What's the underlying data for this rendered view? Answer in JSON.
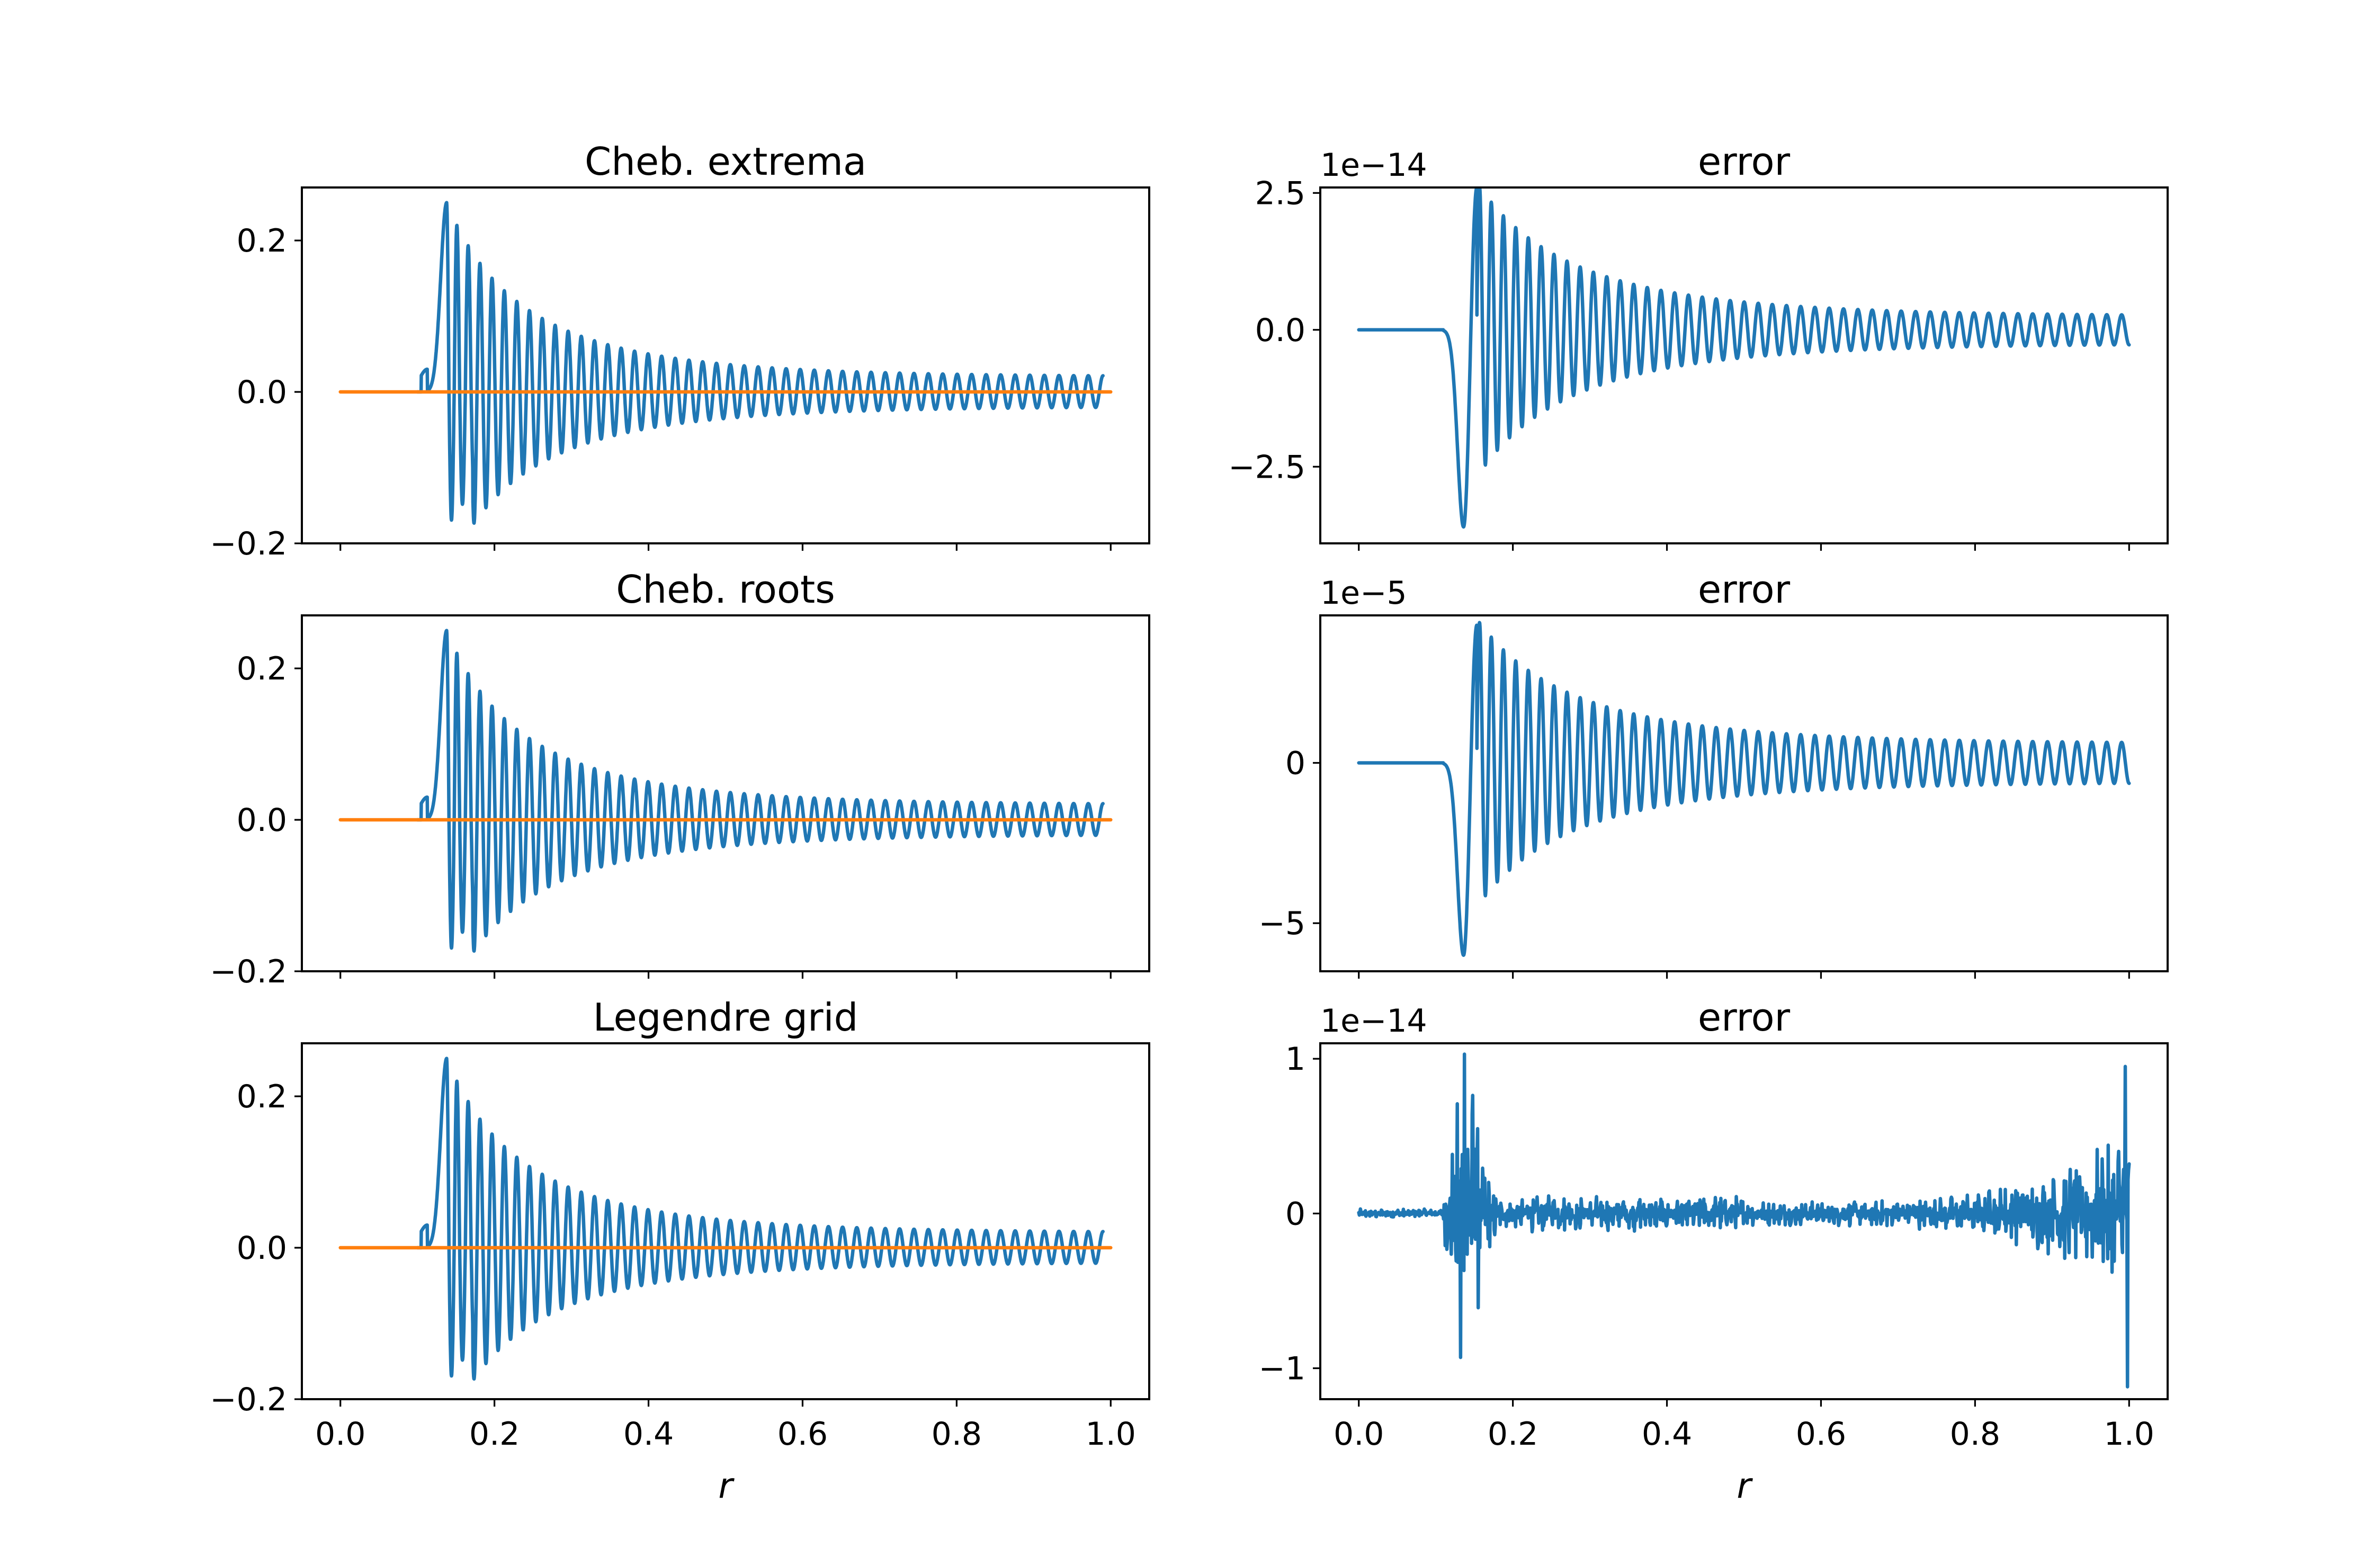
{
  "figure": {
    "xlabel": "r",
    "x_ticks": [
      0.0,
      0.2,
      0.4,
      0.6,
      0.8,
      1.0
    ],
    "x_tick_labels": [
      "0.0",
      "0.2",
      "0.4",
      "0.6",
      "0.8",
      "1.0"
    ],
    "colors": {
      "series_numeric": "#1f77b4",
      "series_exact": "#ff7f0e"
    }
  },
  "chart_data": [
    {
      "type": "line",
      "title": "Cheb. extrema",
      "xlabel": "",
      "xlim": [
        -0.05,
        1.05
      ],
      "ylim": [
        -0.2,
        0.27
      ],
      "y_ticks": [
        -0.2,
        0.0,
        0.2
      ],
      "y_tick_labels": [
        "−0.2",
        "0.0",
        "0.2"
      ],
      "offset_text": "",
      "show_x_tick_labels": false,
      "series": [
        {
          "color": "#1f77b4",
          "kind": "wave",
          "x_start": 0.1,
          "x_end": 0.99,
          "y_first_peak": 0.25,
          "y_first_trough": -0.18,
          "y_end_amplitude": 0.02,
          "cycles": 48
        },
        {
          "color": "#ff7f0e",
          "kind": "constant",
          "x_start": 0.0,
          "x_end": 1.0,
          "y": 0.0
        }
      ]
    },
    {
      "type": "line",
      "title": "error",
      "xlabel": "",
      "xlim": [
        -0.05,
        1.05
      ],
      "ylim": [
        -3.9,
        2.6
      ],
      "y_ticks": [
        -2.5,
        0.0,
        2.5
      ],
      "y_tick_labels": [
        "−2.5",
        "0.0",
        "2.5"
      ],
      "offset_text": "1e−14",
      "show_x_tick_labels": false,
      "series": [
        {
          "color": "#1f77b4",
          "kind": "error",
          "x_start": 0.0,
          "x_end": 1.0,
          "y_first_trough": -3.6,
          "y_first_peak": 2.6,
          "y_end_amplitude": 0.25,
          "cycles": 48
        }
      ]
    },
    {
      "type": "line",
      "title": "Cheb. roots",
      "xlabel": "",
      "xlim": [
        -0.05,
        1.05
      ],
      "ylim": [
        -0.2,
        0.27
      ],
      "y_ticks": [
        -0.2,
        0.0,
        0.2
      ],
      "y_tick_labels": [
        "−0.2",
        "0.0",
        "0.2"
      ],
      "offset_text": "",
      "show_x_tick_labels": false,
      "series": [
        {
          "color": "#1f77b4",
          "kind": "wave",
          "x_start": 0.1,
          "x_end": 0.99,
          "y_first_peak": 0.25,
          "y_first_trough": -0.18,
          "y_end_amplitude": 0.02,
          "cycles": 48
        },
        {
          "color": "#ff7f0e",
          "kind": "constant",
          "x_start": 0.0,
          "x_end": 1.0,
          "y": 0.0
        }
      ]
    },
    {
      "type": "line",
      "title": "error",
      "xlabel": "",
      "xlim": [
        -0.05,
        1.05
      ],
      "ylim": [
        -6.5,
        4.6
      ],
      "y_ticks": [
        -5,
        0
      ],
      "y_tick_labels": [
        "−5",
        "0"
      ],
      "offset_text": "1e−5",
      "show_x_tick_labels": false,
      "series": [
        {
          "color": "#1f77b4",
          "kind": "error",
          "x_start": 0.0,
          "x_end": 1.0,
          "y_first_trough": -6.0,
          "y_first_peak": 4.3,
          "y_end_amplitude": 0.6,
          "cycles": 48
        }
      ]
    },
    {
      "type": "line",
      "title": "Legendre grid",
      "xlabel": "r",
      "xlim": [
        -0.05,
        1.05
      ],
      "ylim": [
        -0.2,
        0.27
      ],
      "y_ticks": [
        -0.2,
        0.0,
        0.2
      ],
      "y_tick_labels": [
        "−0.2",
        "0.0",
        "0.2"
      ],
      "offset_text": "",
      "show_x_tick_labels": true,
      "series": [
        {
          "color": "#1f77b4",
          "kind": "wave",
          "x_start": 0.1,
          "x_end": 0.99,
          "y_first_peak": 0.25,
          "y_first_trough": -0.18,
          "y_end_amplitude": 0.02,
          "cycles": 48
        },
        {
          "color": "#ff7f0e",
          "kind": "constant",
          "x_start": 0.0,
          "x_end": 1.0,
          "y": 0.0
        }
      ]
    },
    {
      "type": "line",
      "title": "error",
      "xlabel": "r",
      "xlim": [
        -0.05,
        1.05
      ],
      "ylim": [
        -1.2,
        1.1
      ],
      "y_ticks": [
        -1,
        0,
        1
      ],
      "y_tick_labels": [
        "−1",
        "0",
        "1"
      ],
      "offset_text": "1e−14",
      "show_x_tick_labels": true,
      "series": [
        {
          "color": "#1f77b4",
          "kind": "noise",
          "x_start": 0.0,
          "x_end": 1.0,
          "y_spike_max": 1.03,
          "y_spike_min": -0.93,
          "y_end_max": 0.95,
          "y_end_min": -1.12
        }
      ]
    }
  ]
}
